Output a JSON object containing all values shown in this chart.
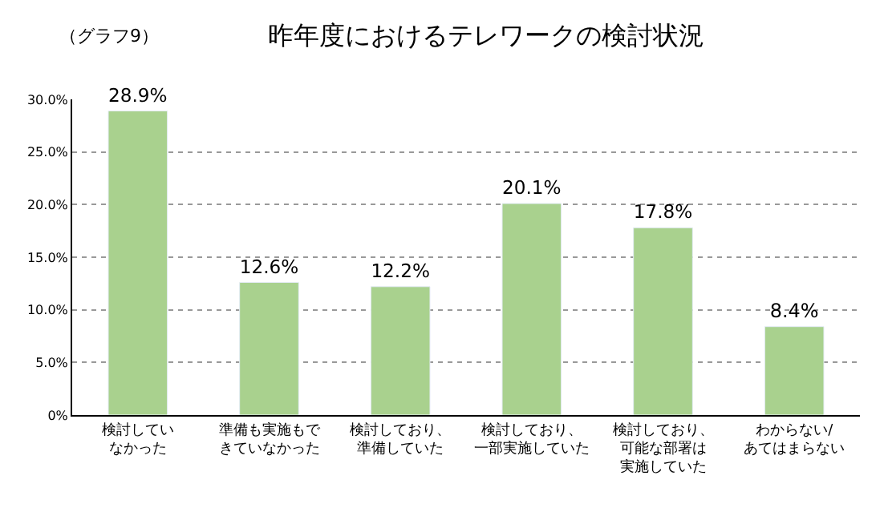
{
  "chart_data": {
    "type": "bar",
    "title": "昨年度におけるテレワークの検討状況",
    "subtitle": "（グラフ9）",
    "categories": [
      "検討していなかった",
      "準備も実施もできていなかった",
      "検討しており、準備していた",
      "検討しており、一部実施していた",
      "検討しており、可能な部署は実施していた",
      "わからない/あてはまらない"
    ],
    "values": [
      28.9,
      12.6,
      12.2,
      20.1,
      17.8,
      8.4
    ],
    "value_labels": [
      "28.9%",
      "12.6%",
      "12.2%",
      "20.1%",
      "17.8%",
      "8.4%"
    ],
    "color": "#a9d18e",
    "ylim": [
      0,
      30
    ],
    "yticks": [
      {
        "value": 0,
        "label": "0%"
      },
      {
        "value": 5,
        "label": "5.0%"
      },
      {
        "value": 10,
        "label": "10.0%"
      },
      {
        "value": 15,
        "label": "15.0%"
      },
      {
        "value": 20,
        "label": "20.0%"
      },
      {
        "value": 25,
        "label": "25.0%"
      },
      {
        "value": 30,
        "label": "30.0%"
      }
    ],
    "grid": "y",
    "legend": false
  }
}
